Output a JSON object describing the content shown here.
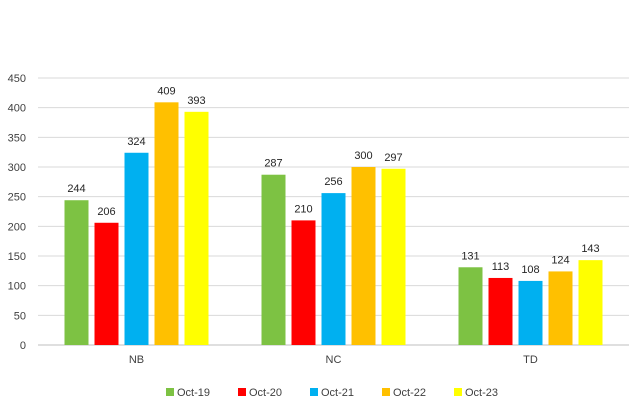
{
  "chart_data": {
    "type": "bar",
    "categories": [
      "NB",
      "NC",
      "TD"
    ],
    "series": [
      {
        "name": "Oct-19",
        "color": "#7dc243",
        "values": [
          244,
          287,
          131
        ]
      },
      {
        "name": "Oct-20",
        "color": "#ff0000",
        "values": [
          206,
          210,
          113
        ]
      },
      {
        "name": "Oct-21",
        "color": "#00b0f0",
        "values": [
          324,
          256,
          108
        ]
      },
      {
        "name": "Oct-22",
        "color": "#ffc000",
        "values": [
          409,
          300,
          124
        ]
      },
      {
        "name": "Oct-23",
        "color": "#ffff00",
        "values": [
          393,
          297,
          143
        ]
      }
    ],
    "yticks": [
      "0",
      "50",
      "100",
      "150",
      "200",
      "250",
      "300",
      "350",
      "400",
      "450"
    ],
    "ylim": [
      0,
      450
    ],
    "grid": true,
    "legend_position": "bottom"
  }
}
